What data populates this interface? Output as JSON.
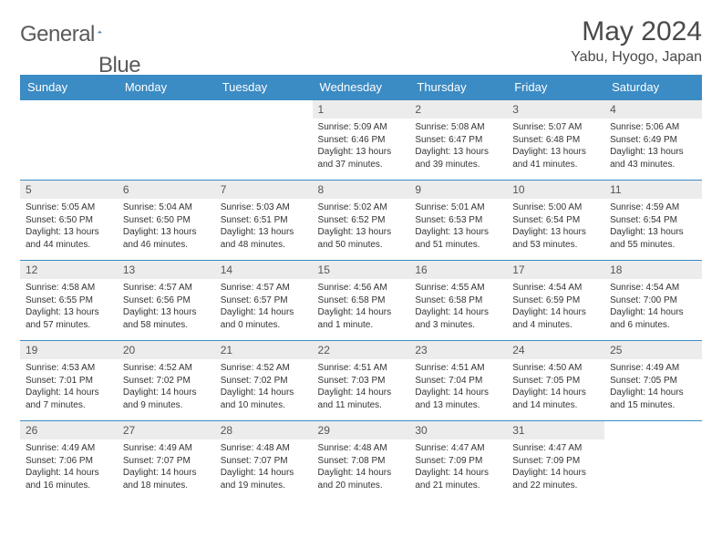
{
  "brand": {
    "name_a": "General",
    "name_b": "Blue"
  },
  "title": "May 2024",
  "location": "Yabu, Hyogo, Japan",
  "colors": {
    "header_bg": "#3b8bc4",
    "header_text": "#ffffff",
    "daynum_bg": "#ececec",
    "border": "#3b8bc4",
    "body_text": "#333333",
    "title_text": "#4a4a4a"
  },
  "daynames": [
    "Sunday",
    "Monday",
    "Tuesday",
    "Wednesday",
    "Thursday",
    "Friday",
    "Saturday"
  ],
  "weeks": [
    [
      {
        "empty": true
      },
      {
        "empty": true
      },
      {
        "empty": true
      },
      {
        "n": "1",
        "sr": "Sunrise: 5:09 AM",
        "ss": "Sunset: 6:46 PM",
        "dl": "Daylight: 13 hours and 37 minutes."
      },
      {
        "n": "2",
        "sr": "Sunrise: 5:08 AM",
        "ss": "Sunset: 6:47 PM",
        "dl": "Daylight: 13 hours and 39 minutes."
      },
      {
        "n": "3",
        "sr": "Sunrise: 5:07 AM",
        "ss": "Sunset: 6:48 PM",
        "dl": "Daylight: 13 hours and 41 minutes."
      },
      {
        "n": "4",
        "sr": "Sunrise: 5:06 AM",
        "ss": "Sunset: 6:49 PM",
        "dl": "Daylight: 13 hours and 43 minutes."
      }
    ],
    [
      {
        "n": "5",
        "sr": "Sunrise: 5:05 AM",
        "ss": "Sunset: 6:50 PM",
        "dl": "Daylight: 13 hours and 44 minutes."
      },
      {
        "n": "6",
        "sr": "Sunrise: 5:04 AM",
        "ss": "Sunset: 6:50 PM",
        "dl": "Daylight: 13 hours and 46 minutes."
      },
      {
        "n": "7",
        "sr": "Sunrise: 5:03 AM",
        "ss": "Sunset: 6:51 PM",
        "dl": "Daylight: 13 hours and 48 minutes."
      },
      {
        "n": "8",
        "sr": "Sunrise: 5:02 AM",
        "ss": "Sunset: 6:52 PM",
        "dl": "Daylight: 13 hours and 50 minutes."
      },
      {
        "n": "9",
        "sr": "Sunrise: 5:01 AM",
        "ss": "Sunset: 6:53 PM",
        "dl": "Daylight: 13 hours and 51 minutes."
      },
      {
        "n": "10",
        "sr": "Sunrise: 5:00 AM",
        "ss": "Sunset: 6:54 PM",
        "dl": "Daylight: 13 hours and 53 minutes."
      },
      {
        "n": "11",
        "sr": "Sunrise: 4:59 AM",
        "ss": "Sunset: 6:54 PM",
        "dl": "Daylight: 13 hours and 55 minutes."
      }
    ],
    [
      {
        "n": "12",
        "sr": "Sunrise: 4:58 AM",
        "ss": "Sunset: 6:55 PM",
        "dl": "Daylight: 13 hours and 57 minutes."
      },
      {
        "n": "13",
        "sr": "Sunrise: 4:57 AM",
        "ss": "Sunset: 6:56 PM",
        "dl": "Daylight: 13 hours and 58 minutes."
      },
      {
        "n": "14",
        "sr": "Sunrise: 4:57 AM",
        "ss": "Sunset: 6:57 PM",
        "dl": "Daylight: 14 hours and 0 minutes."
      },
      {
        "n": "15",
        "sr": "Sunrise: 4:56 AM",
        "ss": "Sunset: 6:58 PM",
        "dl": "Daylight: 14 hours and 1 minute."
      },
      {
        "n": "16",
        "sr": "Sunrise: 4:55 AM",
        "ss": "Sunset: 6:58 PM",
        "dl": "Daylight: 14 hours and 3 minutes."
      },
      {
        "n": "17",
        "sr": "Sunrise: 4:54 AM",
        "ss": "Sunset: 6:59 PM",
        "dl": "Daylight: 14 hours and 4 minutes."
      },
      {
        "n": "18",
        "sr": "Sunrise: 4:54 AM",
        "ss": "Sunset: 7:00 PM",
        "dl": "Daylight: 14 hours and 6 minutes."
      }
    ],
    [
      {
        "n": "19",
        "sr": "Sunrise: 4:53 AM",
        "ss": "Sunset: 7:01 PM",
        "dl": "Daylight: 14 hours and 7 minutes."
      },
      {
        "n": "20",
        "sr": "Sunrise: 4:52 AM",
        "ss": "Sunset: 7:02 PM",
        "dl": "Daylight: 14 hours and 9 minutes."
      },
      {
        "n": "21",
        "sr": "Sunrise: 4:52 AM",
        "ss": "Sunset: 7:02 PM",
        "dl": "Daylight: 14 hours and 10 minutes."
      },
      {
        "n": "22",
        "sr": "Sunrise: 4:51 AM",
        "ss": "Sunset: 7:03 PM",
        "dl": "Daylight: 14 hours and 11 minutes."
      },
      {
        "n": "23",
        "sr": "Sunrise: 4:51 AM",
        "ss": "Sunset: 7:04 PM",
        "dl": "Daylight: 14 hours and 13 minutes."
      },
      {
        "n": "24",
        "sr": "Sunrise: 4:50 AM",
        "ss": "Sunset: 7:05 PM",
        "dl": "Daylight: 14 hours and 14 minutes."
      },
      {
        "n": "25",
        "sr": "Sunrise: 4:49 AM",
        "ss": "Sunset: 7:05 PM",
        "dl": "Daylight: 14 hours and 15 minutes."
      }
    ],
    [
      {
        "n": "26",
        "sr": "Sunrise: 4:49 AM",
        "ss": "Sunset: 7:06 PM",
        "dl": "Daylight: 14 hours and 16 minutes."
      },
      {
        "n": "27",
        "sr": "Sunrise: 4:49 AM",
        "ss": "Sunset: 7:07 PM",
        "dl": "Daylight: 14 hours and 18 minutes."
      },
      {
        "n": "28",
        "sr": "Sunrise: 4:48 AM",
        "ss": "Sunset: 7:07 PM",
        "dl": "Daylight: 14 hours and 19 minutes."
      },
      {
        "n": "29",
        "sr": "Sunrise: 4:48 AM",
        "ss": "Sunset: 7:08 PM",
        "dl": "Daylight: 14 hours and 20 minutes."
      },
      {
        "n": "30",
        "sr": "Sunrise: 4:47 AM",
        "ss": "Sunset: 7:09 PM",
        "dl": "Daylight: 14 hours and 21 minutes."
      },
      {
        "n": "31",
        "sr": "Sunrise: 4:47 AM",
        "ss": "Sunset: 7:09 PM",
        "dl": "Daylight: 14 hours and 22 minutes."
      },
      {
        "empty": true
      }
    ]
  ]
}
